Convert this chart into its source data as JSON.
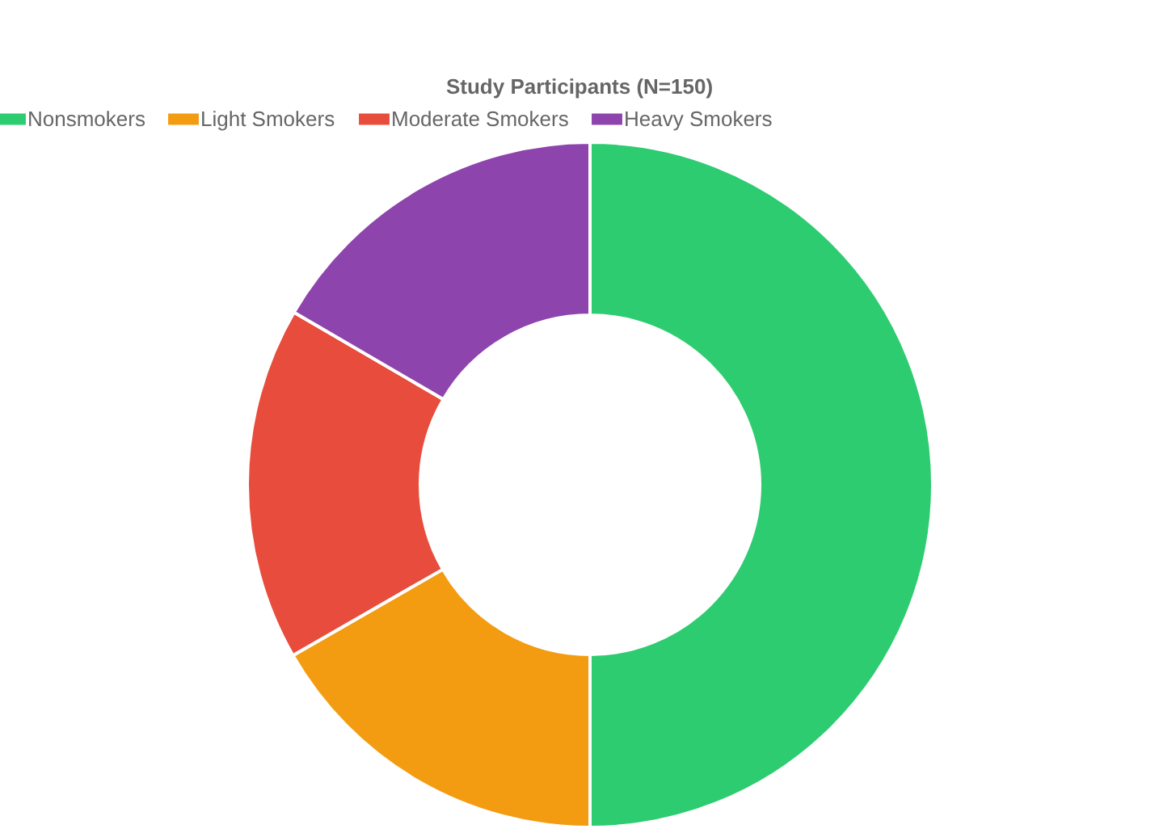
{
  "chart_data": {
    "type": "donut",
    "title": "Study Participants (N=150)",
    "categories": [
      "Nonsmokers",
      "Light Smokers",
      "Moderate Smokers",
      "Heavy Smokers"
    ],
    "values": [
      50,
      16.7,
      16.7,
      16.6
    ],
    "colors": [
      "#2ecc71",
      "#f39c12",
      "#e74c3c",
      "#8e44ad"
    ],
    "legend": "top"
  }
}
